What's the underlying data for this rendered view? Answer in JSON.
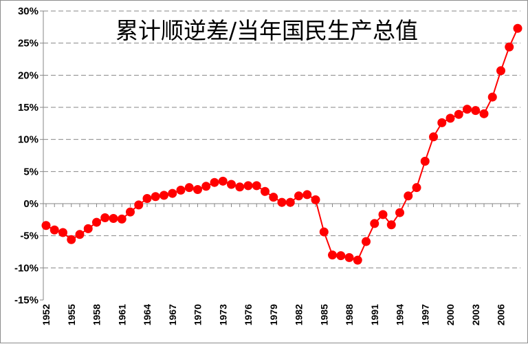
{
  "chart_data": {
    "type": "line",
    "title": "累计顺逆差/当年国民生产总值",
    "y_tick_labels": [
      "30%",
      "25%",
      "20%",
      "15%",
      "10%",
      "5%",
      "0%",
      "-5%",
      "-10%",
      "-15%"
    ],
    "x_tick_labels": [
      "1952",
      "1955",
      "1958",
      "1961",
      "1964",
      "1967",
      "1970",
      "1973",
      "1976",
      "1979",
      "1982",
      "1985",
      "1988",
      "1991",
      "1994",
      "1997",
      "2000",
      "2003",
      "2006"
    ],
    "ylim": [
      -15,
      30
    ],
    "y_unit": "%",
    "grid": "horizontal dashed",
    "series": [
      {
        "color": "#ff0000",
        "x": [
          1952,
          1953,
          1954,
          1955,
          1956,
          1957,
          1958,
          1959,
          1960,
          1961,
          1962,
          1963,
          1964,
          1965,
          1966,
          1967,
          1968,
          1969,
          1970,
          1971,
          1972,
          1973,
          1974,
          1975,
          1976,
          1977,
          1978,
          1979,
          1980,
          1981,
          1982,
          1983,
          1984,
          1985,
          1986,
          1987,
          1988,
          1989,
          1990,
          1991,
          1992,
          1993,
          1994,
          1995,
          1996,
          1997,
          1998,
          1999,
          2000,
          2001,
          2002,
          2003,
          2004,
          2005,
          2006,
          2007,
          2008
        ],
        "values": [
          -3.4,
          -4.1,
          -4.5,
          -5.6,
          -4.8,
          -3.9,
          -2.9,
          -2.2,
          -2.3,
          -2.4,
          -1.3,
          -0.2,
          0.8,
          1.1,
          1.3,
          1.6,
          2.1,
          2.5,
          2.2,
          2.7,
          3.3,
          3.5,
          3.0,
          2.6,
          2.8,
          2.8,
          1.9,
          1.0,
          0.2,
          0.2,
          1.2,
          1.4,
          0.6,
          -4.4,
          -8.0,
          -8.1,
          -8.4,
          -8.8,
          -5.9,
          -3.1,
          -1.7,
          -3.3,
          -1.4,
          1.2,
          2.5,
          6.6,
          10.4,
          12.6,
          13.3,
          13.9,
          14.7,
          14.5,
          14.0,
          16.6,
          20.7,
          24.4,
          27.3
        ]
      }
    ]
  }
}
